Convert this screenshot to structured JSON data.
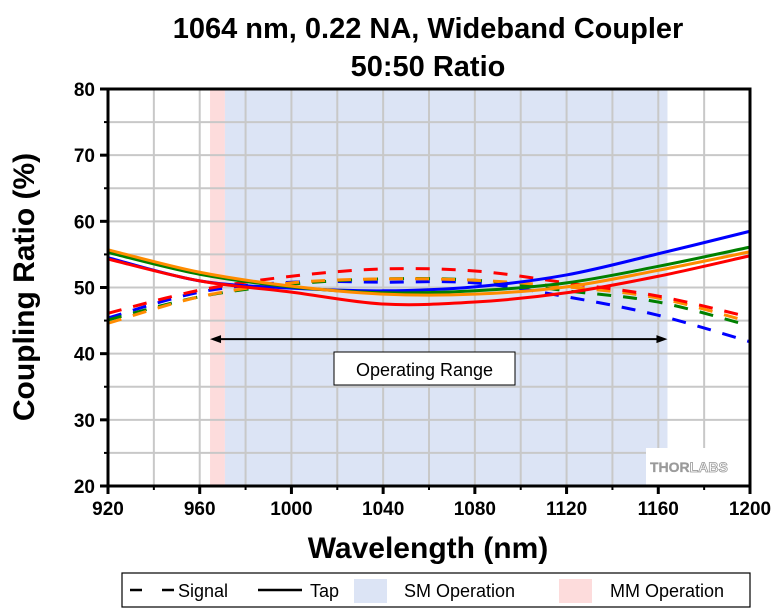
{
  "chart_data": {
    "type": "line",
    "title": "1064 nm, 0.22 NA, Wideband Coupler",
    "subtitle": "50:50 Ratio",
    "xlabel": "Wavelength (nm)",
    "ylabel": "Coupling Ratio (%)",
    "xlim": [
      920,
      1200
    ],
    "ylim": [
      20,
      80
    ],
    "xticks": [
      920,
      960,
      1000,
      1040,
      1080,
      1120,
      1160,
      1200
    ],
    "yticks": [
      20,
      30,
      40,
      50,
      60,
      70,
      80
    ],
    "x_minor_step": 20,
    "y_minor_step": 5,
    "grid": true,
    "x": [
      920,
      960,
      1000,
      1040,
      1080,
      1120,
      1160,
      1200
    ],
    "series": [
      {
        "name": "Tap (blue)",
        "style": "solid",
        "color": "#0000ff",
        "values": [
          54.5,
          51.0,
          49.9,
          49.5,
          50.1,
          51.9,
          55.1,
          58.5
        ]
      },
      {
        "name": "Tap (green)",
        "style": "solid",
        "color": "#008000",
        "values": [
          55.3,
          52.0,
          50.1,
          49.2,
          49.5,
          50.7,
          53.2,
          56.1
        ]
      },
      {
        "name": "Tap (orange)",
        "style": "solid",
        "color": "#ff8c00",
        "values": [
          55.7,
          52.3,
          50.2,
          49.0,
          49.0,
          50.1,
          52.6,
          55.4
        ]
      },
      {
        "name": "Tap (red)",
        "style": "solid",
        "color": "#ff0000",
        "values": [
          54.3,
          51.0,
          49.3,
          47.5,
          47.8,
          49.2,
          51.7,
          54.8
        ]
      },
      {
        "name": "Signal (blue)",
        "style": "dashed",
        "color": "#0000ff",
        "values": [
          45.4,
          49.3,
          50.8,
          50.8,
          50.7,
          48.6,
          45.8,
          41.8
        ]
      },
      {
        "name": "Signal (green)",
        "style": "dashed",
        "color": "#008000",
        "values": [
          45.1,
          48.6,
          50.5,
          51.3,
          51.1,
          49.5,
          47.8,
          44.2
        ]
      },
      {
        "name": "Signal (orange)",
        "style": "dashed",
        "color": "#ff8c00",
        "values": [
          44.6,
          48.6,
          50.7,
          51.3,
          51.1,
          50.1,
          48.4,
          44.8
        ]
      },
      {
        "name": "Signal (red)",
        "style": "dashed",
        "color": "#ff0000",
        "values": [
          46.1,
          49.6,
          51.7,
          52.8,
          52.5,
          50.7,
          48.7,
          45.5
        ]
      }
    ],
    "shaded_regions": [
      {
        "name": "MM Operation",
        "x_range": [
          964.5,
          971
        ],
        "color": "#fddcdc"
      },
      {
        "name": "SM Operation",
        "x_range": [
          971,
          1164
        ],
        "color": "#dce4f5"
      }
    ],
    "annotations": [
      {
        "type": "double-arrow",
        "text": "Operating Range",
        "x_range": [
          964.5,
          1164
        ],
        "y": 42.2
      }
    ],
    "legend": {
      "placement": "bottom",
      "entries": [
        {
          "label": "Signal",
          "kind": "dashed-line"
        },
        {
          "label": "Tap",
          "kind": "solid-line"
        },
        {
          "label": "SM Operation",
          "kind": "swatch",
          "color": "#dce4f5"
        },
        {
          "label": "MM Operation",
          "kind": "swatch",
          "color": "#fddcdc"
        }
      ]
    },
    "watermark": {
      "part1": "THOR",
      "part2": "LABS"
    }
  }
}
